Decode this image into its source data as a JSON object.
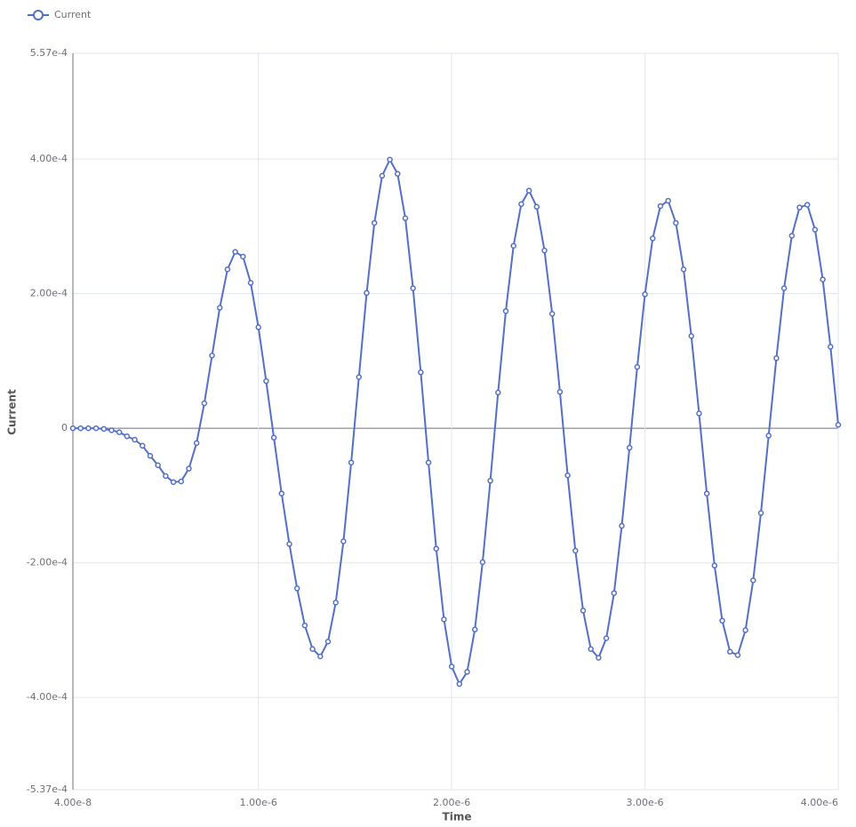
{
  "chart_data": {
    "type": "line",
    "xlabel": "Time",
    "ylabel": "Current",
    "xlim": [
      4e-08,
      4e-06
    ],
    "xticks": [
      {
        "value": 4e-08,
        "label": "4.00e-8"
      },
      {
        "value": 1e-06,
        "label": "1.00e-6"
      },
      {
        "value": 2e-06,
        "label": "2.00e-6"
      },
      {
        "value": 3e-06,
        "label": "3.00e-6"
      },
      {
        "value": 4e-06,
        "label": "4.00e-6"
      }
    ],
    "ylim": [
      -0.000537,
      0.000557
    ],
    "yticks": [
      {
        "value": -0.000537,
        "label": "-5.37e-4"
      },
      {
        "value": -0.0004,
        "label": "-4.00e-4"
      },
      {
        "value": -0.0002,
        "label": "-2.00e-4"
      },
      0,
      {
        "value": 0.0002,
        "label": "2.00e-4"
      },
      {
        "value": 0.0004,
        "label": "4.00e-4"
      },
      {
        "value": 0.000557,
        "label": "5.57e-4"
      }
    ],
    "grid": true,
    "legend": "top-left",
    "x": [
      4e-08,
      8e-08,
      1.2e-07,
      1.6e-07,
      2e-07,
      2.4e-07,
      2.8e-07,
      3.2e-07,
      3.6e-07,
      4e-07,
      4.4e-07,
      4.8e-07,
      5.2e-07,
      5.6e-07,
      6e-07,
      6.4e-07,
      6.8e-07,
      7.2e-07,
      7.6e-07,
      8e-07,
      8.4e-07,
      8.8e-07,
      9.2e-07,
      9.6e-07,
      1e-06,
      1.04e-06,
      1.08e-06,
      1.12e-06,
      1.16e-06,
      1.2e-06,
      1.24e-06,
      1.28e-06,
      1.32e-06,
      1.36e-06,
      1.4e-06,
      1.44e-06,
      1.48e-06,
      1.52e-06,
      1.56e-06,
      1.6e-06,
      1.64e-06,
      1.68e-06,
      1.72e-06,
      1.76e-06,
      1.8e-06,
      1.84e-06,
      1.88e-06,
      1.92e-06,
      1.96e-06,
      2e-06,
      2.04e-06,
      2.08e-06,
      2.12e-06,
      2.16e-06,
      2.2e-06,
      2.24e-06,
      2.28e-06,
      2.32e-06,
      2.36e-06,
      2.4e-06,
      2.44e-06,
      2.48e-06,
      2.52e-06,
      2.56e-06,
      2.6e-06,
      2.64e-06,
      2.68e-06,
      2.72e-06,
      2.76e-06,
      2.8e-06,
      2.84e-06,
      2.88e-06,
      2.92e-06,
      2.96e-06,
      3e-06,
      3.04e-06,
      3.08e-06,
      3.12e-06,
      3.16e-06,
      3.2e-06,
      3.24e-06,
      3.28e-06,
      3.32e-06,
      3.36e-06,
      3.4e-06,
      3.44e-06,
      3.48e-06,
      3.52e-06,
      3.56e-06,
      3.6e-06,
      3.64e-06,
      3.68e-06,
      3.72e-06,
      3.76e-06,
      3.8e-06,
      3.84e-06,
      3.88e-06,
      3.92e-06,
      3.96e-06,
      4e-06
    ],
    "series": [
      {
        "name": "Current",
        "color": "#5470c6",
        "values": [
          0,
          0,
          0,
          0,
          -1e-06,
          -3e-06,
          -6e-06,
          -1.2e-05,
          -1.7e-05,
          -2.6e-05,
          -4.1e-05,
          -5.5e-05,
          -7.1e-05,
          -8e-05,
          -7.9e-05,
          -6e-05,
          -2.2e-05,
          3.7e-05,
          0.000108,
          0.000179,
          0.000236,
          0.000262,
          0.000255,
          0.000216,
          0.00015,
          7e-05,
          -1.4e-05,
          -9.7e-05,
          -0.000172,
          -0.000238,
          -0.000293,
          -0.000328,
          -0.000339,
          -0.000317,
          -0.000259,
          -0.000168,
          -5.1e-05,
          7.6e-05,
          0.000201,
          0.000305,
          0.000375,
          0.000399,
          0.000378,
          0.000312,
          0.000208,
          8.3e-05,
          -5.1e-05,
          -0.000179,
          -0.000284,
          -0.000354,
          -0.00038,
          -0.000362,
          -0.000299,
          -0.000199,
          -7.8e-05,
          5.3e-05,
          0.000174,
          0.000271,
          0.000333,
          0.000353,
          0.000329,
          0.000264,
          0.00017,
          5.4e-05,
          -7e-05,
          -0.000182,
          -0.000271,
          -0.000328,
          -0.000341,
          -0.000312,
          -0.000245,
          -0.000145,
          -2.9e-05,
          9.1e-05,
          0.000199,
          0.000282,
          0.00033,
          0.000338,
          0.000305,
          0.000236,
          0.000137,
          2.2e-05,
          -9.7e-05,
          -0.000204,
          -0.000286,
          -0.000332,
          -0.000337,
          -0.0003,
          -0.000226,
          -0.000126,
          -1.1e-05,
          0.000104,
          0.000208,
          0.000286,
          0.000328,
          0.000332,
          0.000295,
          0.000221,
          0.000121,
          5e-06
        ]
      }
    ]
  }
}
